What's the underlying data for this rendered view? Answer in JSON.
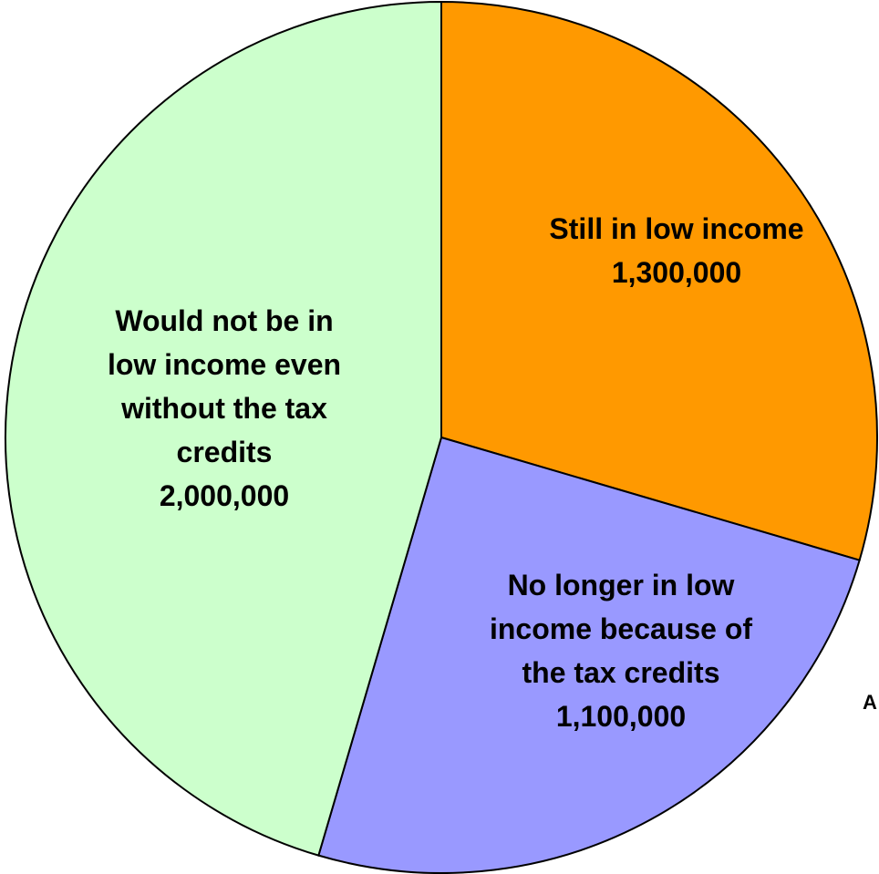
{
  "chart_data": {
    "type": "pie",
    "start_angle_deg": 0,
    "slices": [
      {
        "lines": [
          "Still in low income"
        ],
        "value_label": "1,300,000",
        "value": 1300000,
        "color": "#ff9900"
      },
      {
        "lines": [
          "No longer in low",
          "income because of",
          "the tax credits"
        ],
        "value_label": "1,100,000",
        "value": 1100000,
        "color": "#9999ff"
      },
      {
        "lines": [
          "Would not be in",
          "low income even",
          "without the tax",
          "credits"
        ],
        "value_label": "2,000,000",
        "value": 2000000,
        "color": "#ccffcc"
      }
    ],
    "stray_text": "A"
  }
}
